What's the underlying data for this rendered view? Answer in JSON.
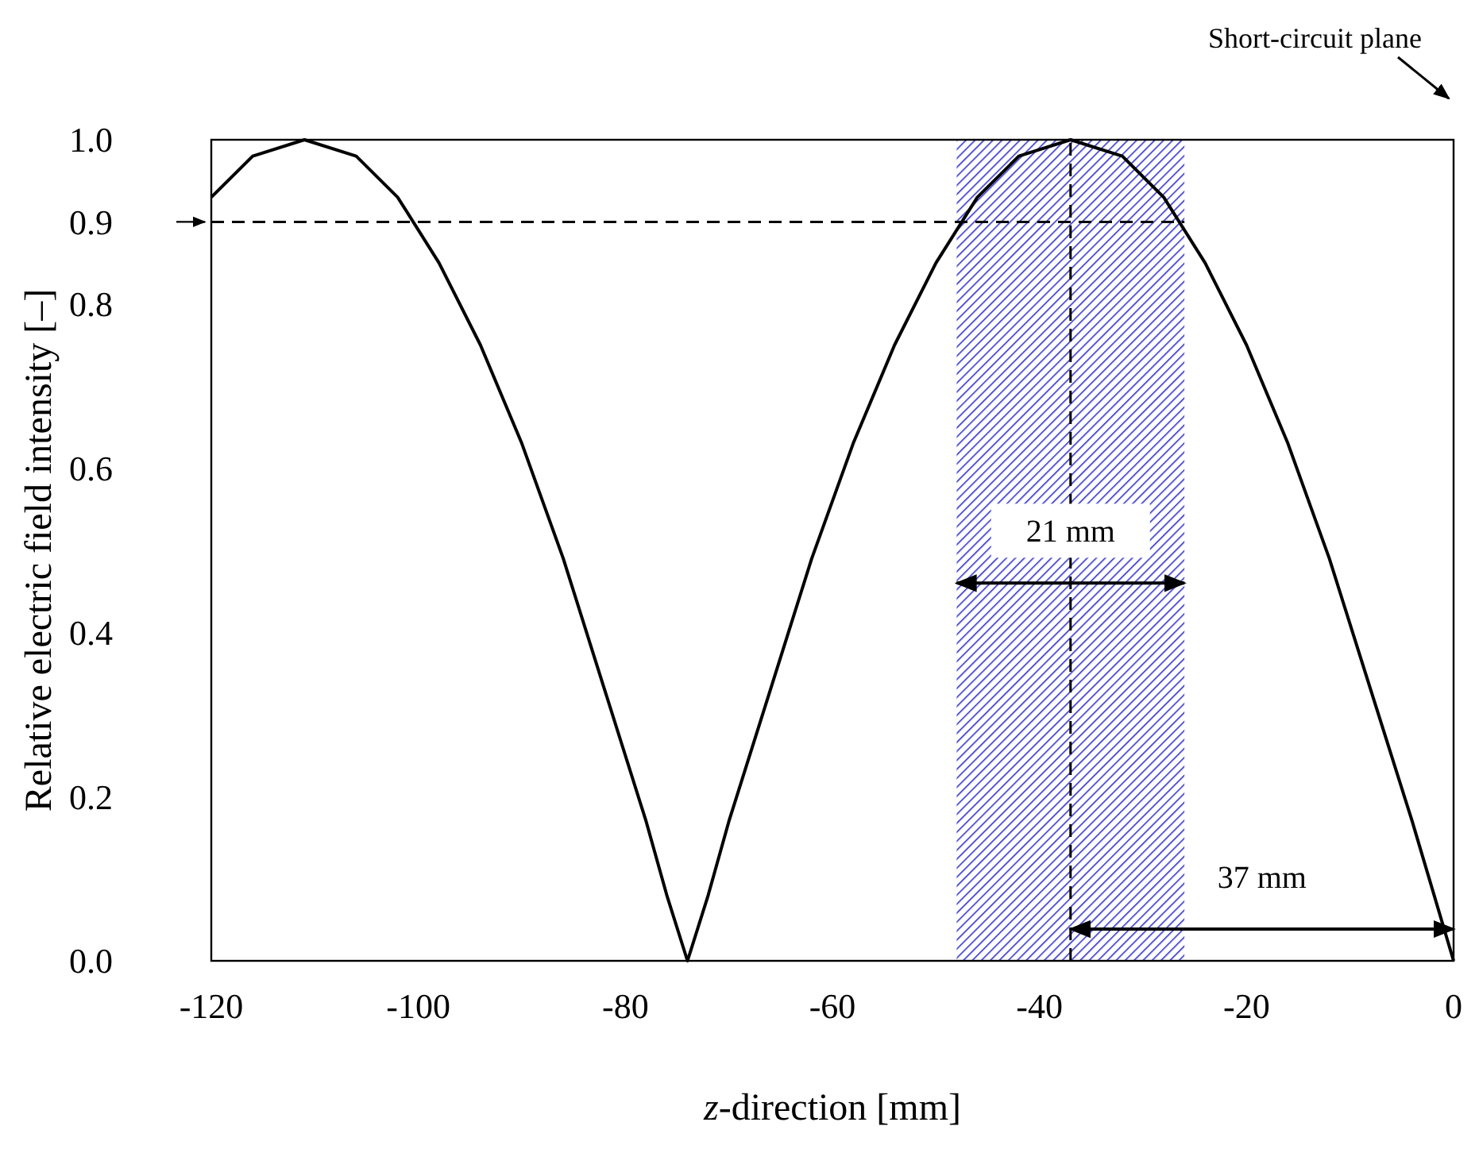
{
  "chart_data": {
    "type": "line",
    "xlabel": "z-direction [mm]",
    "ylabel": "Relative electric field intensity  [–]",
    "x": [
      -120,
      -116,
      -111,
      -106,
      -102,
      -98,
      -94,
      -90,
      -86,
      -82,
      -78,
      -76,
      -74,
      -72,
      -70,
      -66,
      -62,
      -58,
      -54,
      -50,
      -46,
      -42,
      -37,
      -32,
      -28,
      -24,
      -20,
      -16,
      -12,
      -8,
      -4,
      0
    ],
    "series": [
      {
        "color": "#000000",
        "values": [
          0.93,
          0.98,
          1.0,
          0.98,
          0.93,
          0.85,
          0.75,
          0.63,
          0.49,
          0.33,
          0.17,
          0.08,
          0.0,
          0.08,
          0.17,
          0.33,
          0.49,
          0.63,
          0.75,
          0.85,
          0.93,
          0.98,
          1.0,
          0.98,
          0.93,
          0.85,
          0.75,
          0.63,
          0.49,
          0.33,
          0.17,
          0.0
        ]
      }
    ],
    "xlim": [
      -120,
      0
    ],
    "xticks": [
      -120,
      -100,
      -80,
      -60,
      -40,
      -20,
      0
    ],
    "ylim": [
      0,
      1
    ],
    "yticks": [
      {
        "value": 0,
        "label": "0.0"
      },
      {
        "value": 0.2,
        "label": "0.2"
      },
      {
        "value": 0.4,
        "label": "0.4"
      },
      {
        "value": 0.6,
        "label": "0.6"
      },
      {
        "value": 0.8,
        "label": "0.8"
      },
      {
        "value": 1,
        "label": "1.0"
      }
    ],
    "grid": false,
    "line_style": "solid",
    "ref_lines": [
      {
        "axis": "y",
        "value": 0.9,
        "label": "0.9",
        "line_style": "dashed",
        "color": "#000000"
      },
      {
        "axis": "x",
        "value": -37,
        "label": null,
        "line_style": "dashed",
        "color": "#000000"
      }
    ],
    "bands": [
      {
        "axis": "x",
        "from": -48,
        "to": -26,
        "label": null,
        "color": "#3333cc"
      }
    ],
    "annotations": [
      {
        "text": "21 mm",
        "x": -37,
        "y": 0.46
      },
      "37 mm",
      "Short-circuit plane"
    ]
  }
}
